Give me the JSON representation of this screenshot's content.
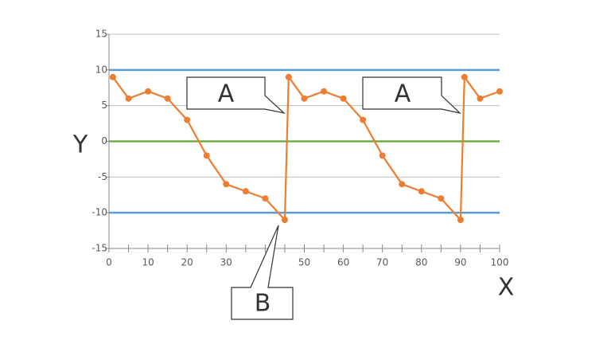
{
  "chart_data": {
    "type": "line",
    "x_label": "X",
    "y_label": "Y",
    "series": [
      {
        "name": "Y",
        "color": "#ed7d31",
        "x": [
          1,
          5,
          10,
          15,
          20,
          25,
          30,
          35,
          40,
          45,
          46,
          50,
          55,
          60,
          65,
          70,
          75,
          80,
          85,
          90,
          91,
          95,
          100
        ],
        "values": [
          9,
          6,
          7,
          6,
          3,
          -2,
          -6,
          -7,
          -8,
          -11,
          9,
          6,
          7,
          6,
          3,
          -2,
          -6,
          -7,
          -8,
          -11,
          9,
          6,
          7
        ]
      }
    ],
    "xlim": [
      0,
      100
    ],
    "ylim": [
      -15,
      15
    ],
    "xticks": [
      0,
      10,
      20,
      30,
      50,
      60,
      70,
      80,
      90,
      100
    ],
    "xminor_ticks": [
      0,
      5,
      10,
      15,
      20,
      25,
      30,
      35,
      40,
      45,
      50,
      55,
      60,
      65,
      70,
      75,
      80,
      85,
      90,
      95,
      100
    ],
    "yticks": [
      15,
      10,
      5,
      0,
      -5,
      -10,
      -15
    ],
    "reference_lines": [
      {
        "value": 10,
        "color": "#5b9bd5"
      },
      {
        "value": 0,
        "color": "#70ad47"
      },
      {
        "value": -10,
        "color": "#5b9bd5"
      }
    ],
    "grid": true,
    "annotations": [
      {
        "text": "A"
      },
      {
        "text": "A"
      },
      {
        "text": "B"
      }
    ]
  }
}
